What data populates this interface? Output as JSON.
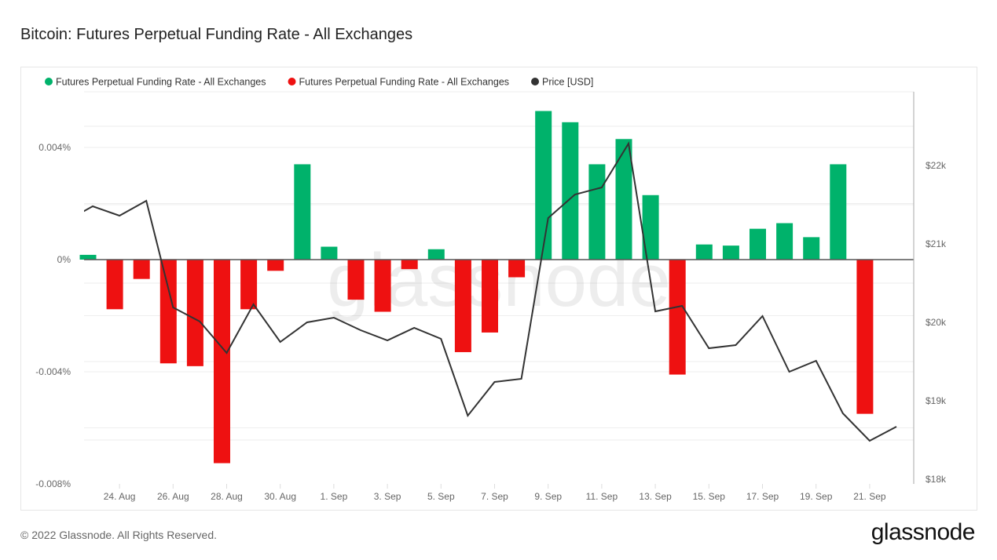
{
  "title": "Bitcoin: Futures Perpetual Funding Rate - All Exchanges",
  "footer": "© 2022 Glassnode. All Rights Reserved.",
  "logo": "glassnode",
  "watermark": "glassnode",
  "chart_data": {
    "type": "bar",
    "title": "Bitcoin: Futures Perpetual Funding Rate - All Exchanges",
    "legend": [
      {
        "name": "Futures Perpetual Funding Rate - All Exchanges",
        "color": "#00b26b"
      },
      {
        "name": "Futures Perpetual Funding Rate - All Exchanges",
        "color": "#ee1111"
      },
      {
        "name": "Price [USD]",
        "color": "#333333"
      }
    ],
    "legend_position": "top-left",
    "x": [
      "23 Aug",
      "24 Aug",
      "25 Aug",
      "26 Aug",
      "27 Aug",
      "28 Aug",
      "29 Aug",
      "30 Aug",
      "31 Aug",
      "1 Sep",
      "2 Sep",
      "3 Sep",
      "4 Sep",
      "5 Sep",
      "6 Sep",
      "7 Sep",
      "8 Sep",
      "9 Sep",
      "10 Sep",
      "11 Sep",
      "12 Sep",
      "13 Sep",
      "14 Sep",
      "15 Sep",
      "16 Sep",
      "17 Sep",
      "18 Sep",
      "19 Sep",
      "20 Sep",
      "21 Sep"
    ],
    "x_tick_labels": [
      "24. Aug",
      "26. Aug",
      "28. Aug",
      "30. Aug",
      "1. Sep",
      "3. Sep",
      "5. Sep",
      "7. Sep",
      "9. Sep",
      "11. Sep",
      "13. Sep",
      "15. Sep",
      "17. Sep",
      "19. Sep",
      "21. Sep"
    ],
    "funding_rate_percent": [
      0.00017,
      -0.00177,
      -0.00069,
      -0.0037,
      -0.0038,
      -0.00726,
      -0.00177,
      -0.0004,
      0.0034,
      0.00046,
      -0.00143,
      -0.00186,
      -0.00034,
      0.00037,
      -0.0033,
      -0.0026,
      -0.00063,
      0.0053,
      0.0049,
      0.0034,
      0.0043,
      0.0023,
      -0.0041,
      0.00054,
      0.0005,
      0.0011,
      0.0013,
      0.0008,
      0.0034,
      -0.0055
    ],
    "price_x": [
      "22 Aug",
      "23 Aug",
      "24 Aug",
      "25 Aug",
      "26 Aug",
      "27 Aug",
      "28 Aug",
      "29 Aug",
      "30 Aug",
      "31 Aug",
      "1 Sep",
      "2 Sep",
      "3 Sep",
      "4 Sep",
      "5 Sep",
      "6 Sep",
      "7 Sep",
      "8 Sep",
      "9 Sep",
      "10 Sep",
      "11 Sep",
      "12 Sep",
      "13 Sep",
      "14 Sep",
      "15 Sep",
      "16 Sep",
      "17 Sep",
      "18 Sep",
      "19 Sep",
      "20 Sep",
      "21 Sep",
      "22 Sep"
    ],
    "price_usd": [
      21290,
      21480,
      21360,
      21550,
      20190,
      20010,
      19610,
      20230,
      19750,
      20000,
      20060,
      19900,
      19770,
      19930,
      19790,
      18810,
      19240,
      19280,
      21330,
      21630,
      21720,
      22280,
      20140,
      20210,
      19670,
      19710,
      20080,
      19370,
      19510,
      18840,
      18490,
      18670
    ],
    "y_left": {
      "ticks": [
        0.004,
        0,
        -0.004,
        -0.008
      ],
      "tick_labels": [
        "0.004%",
        "0%",
        "-0.004%",
        "-0.008%"
      ],
      "range": [
        -0.008,
        0.0062
      ]
    },
    "y_right": {
      "ticks": [
        22000,
        21000,
        20000,
        19000,
        18000
      ],
      "tick_labels": [
        "$22k",
        "$21k",
        "$20k",
        "$19k",
        "$18k"
      ],
      "range": [
        18000,
        23060
      ]
    },
    "colors": {
      "positive": "#00b26b",
      "negative": "#ee1111",
      "price": "#333333"
    },
    "grid": true
  }
}
